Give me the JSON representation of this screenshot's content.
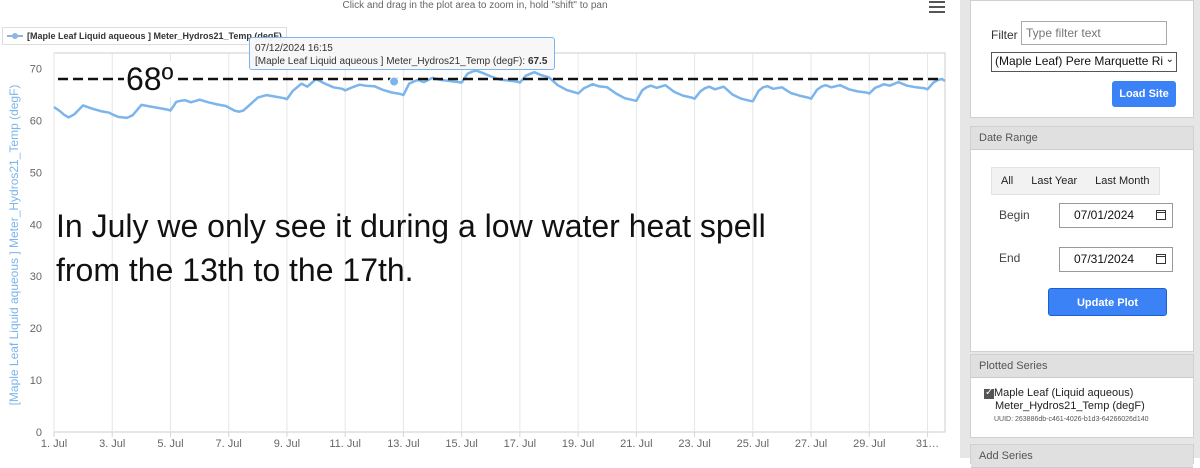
{
  "chart_data": {
    "type": "line",
    "title": "",
    "hint": "Click and drag in the plot area to zoom in, hold \"shift\" to pan",
    "legend": "[Maple Leaf Liquid aqueous ] Meter_Hydros21_Temp (degF)",
    "ylabel": "[Maple Leaf Liquid aqueous ] Meter_Hydros21_Temp (degF)",
    "xlabel": "",
    "ylim": [
      0,
      73
    ],
    "xlim": [
      1,
      31.6
    ],
    "y_ticks": [
      0,
      10,
      20,
      30,
      40,
      50,
      60,
      70
    ],
    "x_ticks": [
      {
        "x": 1,
        "label": "1. Jul"
      },
      {
        "x": 3,
        "label": "3. Jul"
      },
      {
        "x": 5,
        "label": "5. Jul"
      },
      {
        "x": 7,
        "label": "7. Jul"
      },
      {
        "x": 9,
        "label": "9. Jul"
      },
      {
        "x": 11,
        "label": "11. Jul"
      },
      {
        "x": 13,
        "label": "13. Jul"
      },
      {
        "x": 15,
        "label": "15. Jul"
      },
      {
        "x": 17,
        "label": "17. Jul"
      },
      {
        "x": 19,
        "label": "19. Jul"
      },
      {
        "x": 21,
        "label": "21. Jul"
      },
      {
        "x": 23,
        "label": "23. Jul"
      },
      {
        "x": 25,
        "label": "25. Jul"
      },
      {
        "x": 27,
        "label": "27. Jul"
      },
      {
        "x": 29,
        "label": "29. Jul"
      },
      {
        "x": 31,
        "label": "31…"
      }
    ],
    "grid": "vertical",
    "series": [
      {
        "name": "[Maple Leaf Liquid aqueous ] Meter_Hydros21_Temp (degF)",
        "color": "#7cb5ec",
        "x": [
          1.0,
          1.2,
          1.35,
          1.5,
          1.7,
          2.0,
          2.3,
          2.6,
          2.9,
          3.0,
          3.2,
          3.35,
          3.5,
          3.7,
          4.0,
          4.3,
          4.6,
          4.9,
          5.0,
          5.2,
          5.35,
          5.5,
          5.7,
          6.0,
          6.3,
          6.6,
          6.9,
          7.0,
          7.2,
          7.35,
          7.5,
          7.7,
          8.0,
          8.3,
          8.6,
          8.9,
          9.0,
          9.2,
          9.35,
          9.5,
          9.7,
          10.0,
          10.3,
          10.6,
          10.9,
          11.0,
          11.2,
          11.35,
          11.5,
          11.7,
          12.0,
          12.3,
          12.6,
          12.9,
          13.0,
          13.2,
          13.35,
          13.5,
          13.7,
          14.0,
          14.3,
          14.6,
          14.9,
          15.0,
          15.2,
          15.35,
          15.5,
          15.7,
          16.0,
          16.3,
          16.6,
          16.9,
          17.0,
          17.2,
          17.35,
          17.5,
          17.7,
          18.0,
          18.3,
          18.6,
          18.9,
          19.0,
          19.2,
          19.35,
          19.5,
          19.7,
          20.0,
          20.3,
          20.6,
          20.9,
          21.0,
          21.2,
          21.35,
          21.5,
          21.7,
          22.0,
          22.3,
          22.6,
          22.9,
          23.0,
          23.2,
          23.35,
          23.5,
          23.7,
          24.0,
          24.3,
          24.6,
          24.9,
          25.0,
          25.2,
          25.35,
          25.5,
          25.7,
          26.0,
          26.3,
          26.6,
          26.9,
          27.0,
          27.2,
          27.35,
          27.5,
          27.7,
          28.0,
          28.3,
          28.6,
          28.9,
          29.0,
          29.2,
          29.35,
          29.5,
          29.7,
          30.0,
          30.3,
          30.6,
          30.9,
          31.0,
          31.2,
          31.35,
          31.5,
          31.6
        ],
        "values": [
          62.6,
          61.8,
          61.1,
          60.6,
          61.2,
          62.9,
          62.3,
          61.8,
          61.5,
          61.2,
          60.7,
          60.6,
          60.5,
          61.0,
          63.0,
          62.7,
          62.4,
          62.1,
          61.9,
          63.6,
          63.8,
          63.9,
          63.5,
          64.0,
          63.5,
          63.1,
          62.8,
          62.5,
          61.9,
          61.7,
          61.9,
          62.9,
          64.4,
          64.9,
          64.6,
          64.3,
          64.1,
          65.7,
          66.4,
          67.1,
          66.5,
          68.0,
          67.1,
          66.4,
          66.1,
          65.8,
          66.3,
          66.6,
          66.9,
          66.7,
          66.6,
          65.9,
          65.4,
          65.1,
          64.9,
          67.1,
          67.5,
          67.8,
          67.4,
          68.2,
          67.8,
          67.6,
          67.4,
          67.3,
          69.0,
          69.4,
          69.6,
          69.2,
          68.5,
          67.9,
          67.7,
          67.5,
          67.3,
          68.6,
          69.0,
          69.3,
          68.8,
          68.3,
          66.8,
          65.9,
          65.4,
          65.2,
          66.2,
          66.6,
          67.0,
          66.6,
          66.4,
          65.2,
          64.3,
          63.9,
          63.8,
          65.8,
          66.4,
          66.7,
          66.3,
          66.8,
          65.5,
          64.8,
          64.4,
          64.2,
          65.6,
          66.2,
          66.5,
          66.0,
          66.5,
          65.0,
          64.2,
          63.8,
          63.7,
          65.7,
          66.4,
          66.6,
          66.1,
          66.4,
          65.3,
          64.8,
          64.4,
          64.2,
          65.9,
          66.5,
          66.8,
          66.4,
          66.8,
          66.0,
          65.6,
          65.4,
          65.2,
          66.3,
          66.6,
          67.0,
          66.7,
          67.4,
          66.7,
          66.4,
          66.2,
          66.0,
          67.3,
          67.8,
          68.0,
          67.6
        ]
      }
    ],
    "tooltip": {
      "date": "07/12/2024 16:15",
      "label": "[Maple Leaf Liquid aqueous ] Meter_Hydros21_Temp (degF): ",
      "value": "67.5",
      "x": 12.68,
      "y": 67.5
    },
    "reference_line": {
      "y": 68,
      "label": "68º"
    },
    "annotation": "In July we only see it during a low water heat spell\nfrom the 13th to the 17th."
  },
  "sidebar": {
    "filter_label": "Filter",
    "filter_placeholder": "Type filter text",
    "site_select": "(Maple Leaf) Pere Marquette Ri",
    "load_site": "Load Site",
    "date_range_header": "Date Range",
    "tabs": [
      "All",
      "Last Year",
      "Last Month"
    ],
    "begin_label": "Begin",
    "begin_value": "07/01/2024",
    "end_label": "End",
    "end_value": "07/31/2024",
    "update_plot": "Update Plot",
    "plotted_series_header": "Plotted Series",
    "series_name_line1": "Maple Leaf (Liquid aqueous)",
    "series_name_line2": "Meter_Hydros21_Temp (degF)",
    "uuid": "UUID: 263886db-c461-4026-b1d3-64266026d140",
    "add_series_header": "Add Series"
  }
}
